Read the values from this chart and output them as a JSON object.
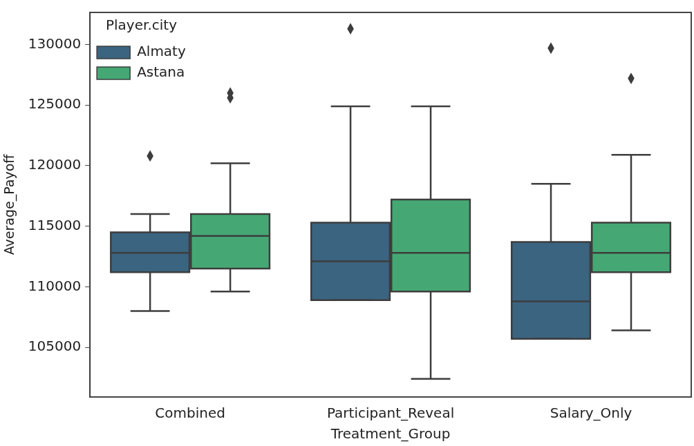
{
  "chart_data": {
    "type": "box",
    "xlabel": "Treatment_Group",
    "ylabel": "Average_Payoff",
    "legend_title": "Player.city",
    "legend": "top left",
    "grid": false,
    "marker": "diamond",
    "categories": [
      "Combined",
      "Participant_Reveal",
      "Salary_Only"
    ],
    "ylim": [
      100900,
      132650
    ],
    "yticks": [
      105000,
      110000,
      115000,
      120000,
      125000,
      130000
    ],
    "series": [
      {
        "name": "Almaty",
        "color": "#3b6480",
        "boxes": [
          {
            "low": 108000,
            "q1": 111200,
            "median": 112800,
            "q3": 114500,
            "high": 116000,
            "outliers": [
              120800
            ]
          },
          {
            "low": 108900,
            "q1": 108900,
            "median": 112100,
            "q3": 115300,
            "high": 124900,
            "outliers": [
              131300
            ]
          },
          {
            "low": 105700,
            "q1": 105700,
            "median": 108800,
            "q3": 113700,
            "high": 118500,
            "outliers": [
              129700
            ]
          }
        ]
      },
      {
        "name": "Astana",
        "color": "#45a874",
        "boxes": [
          {
            "low": 109600,
            "q1": 111500,
            "median": 114200,
            "q3": 116000,
            "high": 120200,
            "outliers": [
              125600,
              126000
            ]
          },
          {
            "low": 102400,
            "q1": 109600,
            "median": 112800,
            "q3": 117200,
            "high": 124900
          },
          {
            "low": 106400,
            "q1": 111200,
            "median": 112800,
            "q3": 115300,
            "high": 120900,
            "outliers": [
              127200
            ]
          }
        ]
      }
    ]
  }
}
